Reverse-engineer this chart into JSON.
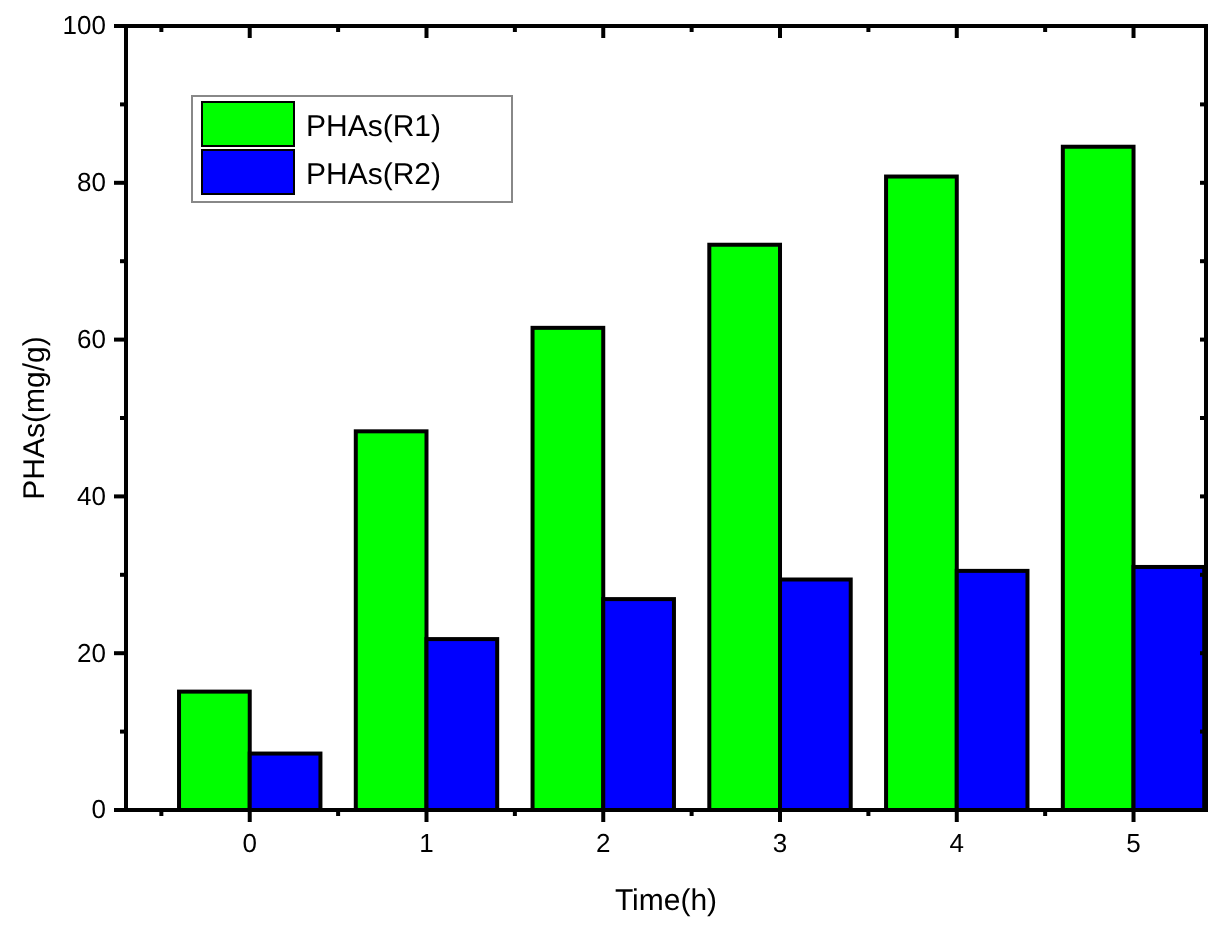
{
  "chart_data": {
    "type": "bar",
    "xlabel": "Time(h)",
    "ylabel": "PHAs(mg/g)",
    "categories": [
      "0",
      "1",
      "2",
      "3",
      "4",
      "5"
    ],
    "series": [
      {
        "name": "PHAs(R1)",
        "color": "#00ff00",
        "values": [
          15.1,
          48.3,
          61.5,
          72.1,
          80.8,
          84.6
        ]
      },
      {
        "name": "PHAs(R2)",
        "color": "#0000ff",
        "values": [
          7.2,
          21.8,
          26.9,
          29.4,
          30.5,
          31.0
        ]
      }
    ],
    "ylim": [
      0,
      100
    ],
    "yticks": [
      0,
      20,
      40,
      60,
      80,
      100
    ],
    "legend": "top left",
    "grid": false
  }
}
